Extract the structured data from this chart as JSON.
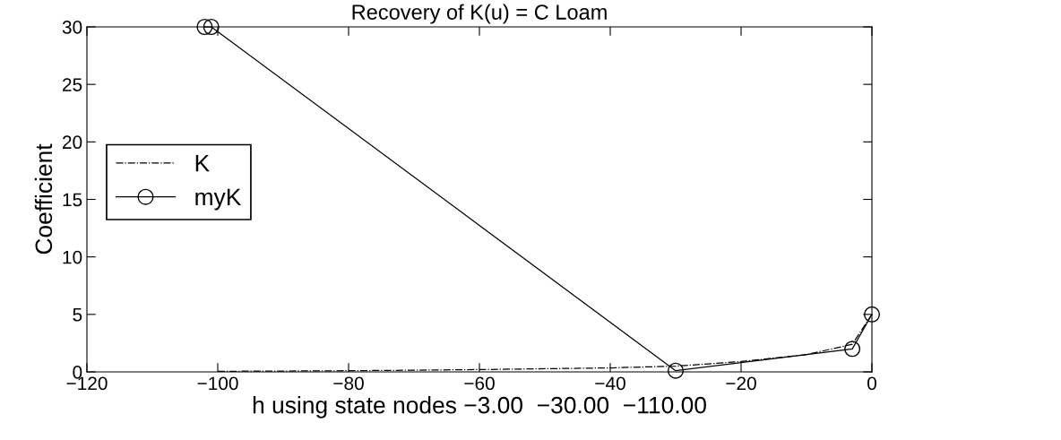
{
  "chart_data": {
    "type": "line",
    "title": "Recovery of K(u) = C Loam",
    "xlabel": "h using state nodes −3.00  −30.00  −110.00",
    "ylabel": "Coefficient",
    "series": [
      {
        "name": "K",
        "color": "#000000",
        "line_style": "dashdot",
        "marker": "none",
        "x": [
          -100,
          -80,
          -60,
          -40,
          -30,
          -20,
          -10,
          -3,
          0
        ],
        "values": [
          0.05,
          0.1,
          0.2,
          0.35,
          0.5,
          0.9,
          1.5,
          2.4,
          5
        ]
      },
      {
        "name": "myK",
        "color": "#000000",
        "line_style": "solid",
        "marker": "circle",
        "x": [
          -102,
          -101,
          -30,
          -3,
          0
        ],
        "values": [
          30,
          30,
          0.1,
          2,
          5
        ]
      }
    ],
    "xlim": [
      -120,
      0
    ],
    "xticks": [
      {
        "value": -120,
        "label": "−120"
      },
      {
        "value": -100,
        "label": "−100"
      },
      {
        "value": -80,
        "label": "−80"
      },
      {
        "value": -60,
        "label": "−60"
      },
      {
        "value": -40,
        "label": "−40"
      },
      {
        "value": -20,
        "label": "−20"
      },
      0
    ],
    "ylim": [
      0,
      30
    ],
    "yticks": [
      0,
      5,
      10,
      15,
      20,
      25,
      30
    ],
    "grid": false,
    "legend": "left"
  }
}
